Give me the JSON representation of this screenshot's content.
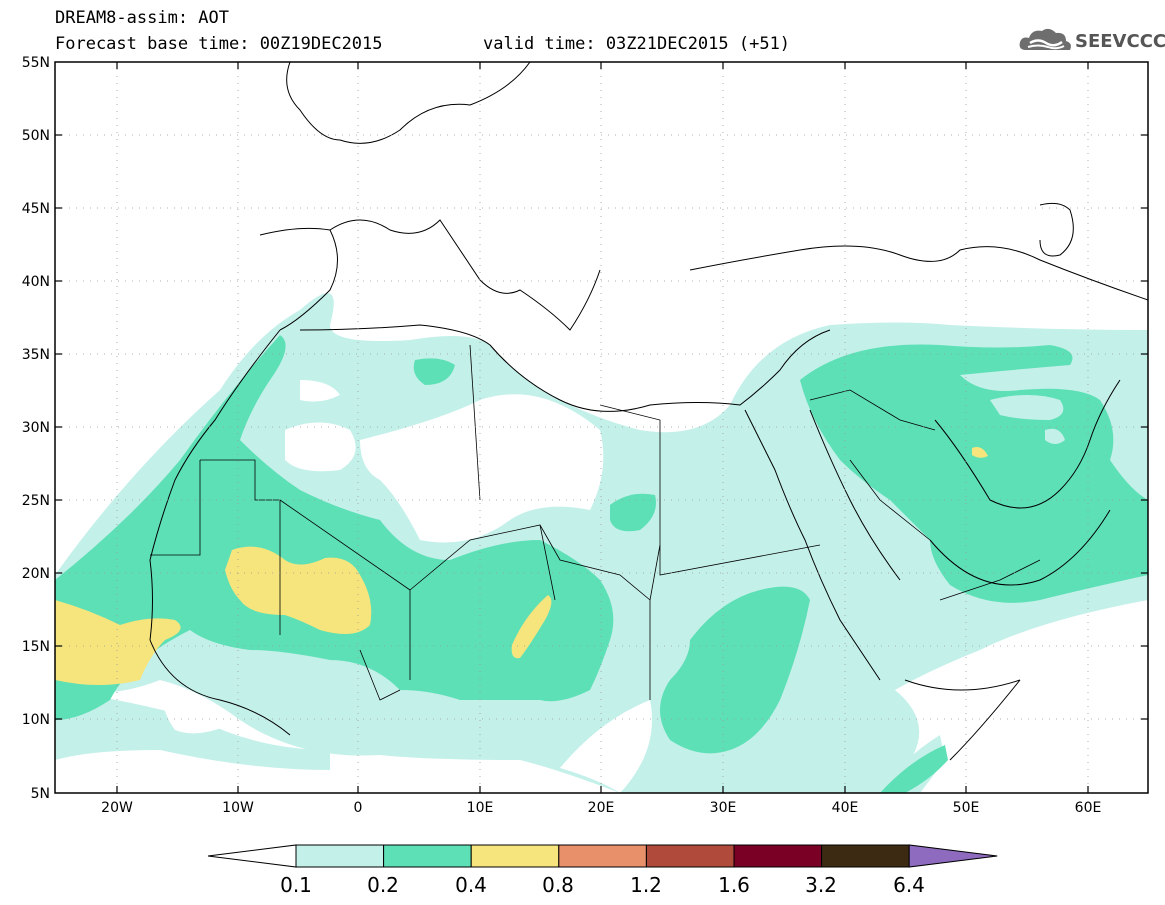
{
  "header": {
    "title": "DREAM8-assim: AOT",
    "base_time": "Forecast base time: 00Z19DEC2015",
    "valid_time": "valid time: 03Z21DEC2015 (+51)"
  },
  "logo": {
    "text": "SEEVCCC",
    "icon": "cloud-logo-icon"
  },
  "map": {
    "lon_range": [
      -25,
      65
    ],
    "lat_range": [
      5,
      55
    ],
    "lon_ticks": [
      "20W",
      "10W",
      "0",
      "10E",
      "20E",
      "30E",
      "40E",
      "50E",
      "60E"
    ],
    "lat_ticks": [
      "55N",
      "50N",
      "45N",
      "40N",
      "35N",
      "30N",
      "25N",
      "20N",
      "15N",
      "10N",
      "5N"
    ],
    "grid": "dotted",
    "variable": "AOT"
  },
  "colorbar": {
    "labels": [
      "0.1",
      "0.2",
      "0.4",
      "0.8",
      "1.2",
      "1.6",
      "3.2",
      "6.4"
    ],
    "colors": [
      "#c4f0ea",
      "#5ee0b6",
      "#f5e57c",
      "#e8906a",
      "#b04b3c",
      "#7a0025",
      "#3d2a12"
    ],
    "over_color": "#8e6bbf",
    "under_color": "#ffffff"
  }
}
